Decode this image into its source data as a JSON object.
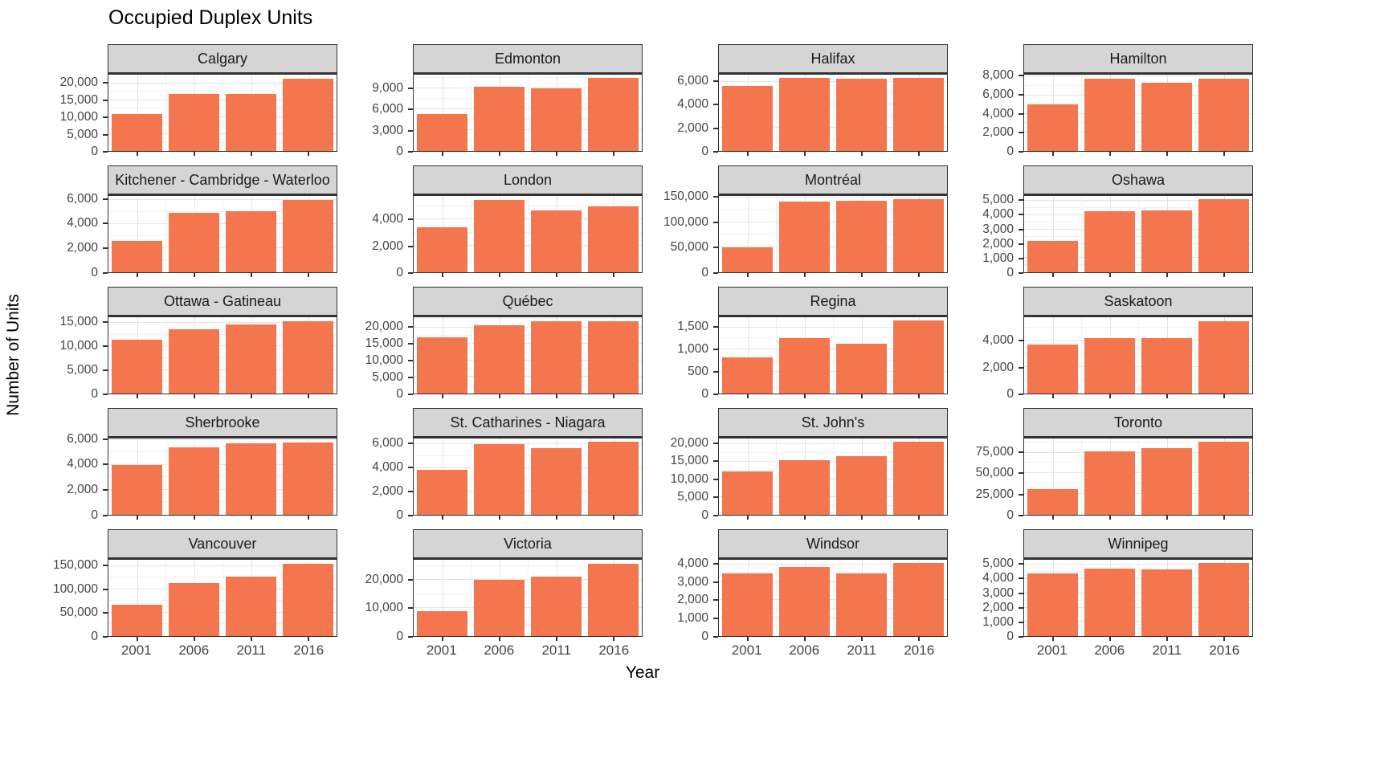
{
  "chart_data": {
    "type": "bar",
    "title": "Occupied Duplex Units",
    "xlabel": "Year",
    "ylabel": "Number of Units",
    "categories": [
      "2001",
      "2006",
      "2011",
      "2016"
    ],
    "bar_color": "#f3764f",
    "grid": true,
    "legend": false,
    "layout": {
      "rows": 5,
      "cols": 4,
      "strip_fill": "#d5d5d5",
      "panel_border": "#333333"
    },
    "facets": [
      {
        "name": "Calgary",
        "yticks": [
          0,
          5000,
          10000,
          15000,
          20000
        ],
        "ymax": 22600,
        "values": [
          11000,
          17000,
          17000,
          21500
        ]
      },
      {
        "name": "Edmonton",
        "yticks": [
          0,
          3000,
          6000,
          9000
        ],
        "ymax": 11000,
        "values": [
          5300,
          9300,
          9000,
          10500
        ]
      },
      {
        "name": "Halifax",
        "yticks": [
          0,
          2000,
          4000,
          6000
        ],
        "ymax": 6600,
        "values": [
          5600,
          6300,
          6250,
          6300
        ]
      },
      {
        "name": "Hamilton",
        "yticks": [
          0,
          2000,
          4000,
          6000,
          8000
        ],
        "ymax": 8200,
        "values": [
          5000,
          7800,
          7300,
          7800
        ]
      },
      {
        "name": "Kitchener - Cambridge - Waterloo",
        "yticks": [
          0,
          2000,
          4000,
          6000
        ],
        "ymax": 6300,
        "values": [
          2600,
          4900,
          5050,
          6000
        ]
      },
      {
        "name": "London",
        "yticks": [
          0,
          2000,
          4000
        ],
        "ymax": 5800,
        "values": [
          3400,
          5500,
          4700,
          5000
        ]
      },
      {
        "name": "Montréal",
        "yticks": [
          0,
          50000,
          100000,
          150000
        ],
        "ymax": 153000,
        "values": [
          50000,
          141000,
          144000,
          146000
        ]
      },
      {
        "name": "Oshawa",
        "yticks": [
          0,
          1000,
          2000,
          3000,
          4000,
          5000
        ],
        "ymax": 5350,
        "values": [
          2200,
          4300,
          4350,
          5100
        ]
      },
      {
        "name": "Ottawa - Gatineau",
        "yticks": [
          0,
          5000,
          10000,
          15000
        ],
        "ymax": 16200,
        "values": [
          11500,
          13600,
          14700,
          15400
        ]
      },
      {
        "name": "Québec",
        "yticks": [
          0,
          5000,
          10000,
          15000,
          20000
        ],
        "ymax": 23100,
        "values": [
          17000,
          20700,
          22000,
          22000
        ]
      },
      {
        "name": "Regina",
        "yticks": [
          0,
          500,
          1000,
          1500
        ],
        "ymax": 1730,
        "values": [
          820,
          1250,
          1130,
          1650
        ]
      },
      {
        "name": "Saskatoon",
        "yticks": [
          0,
          2000,
          4000
        ],
        "ymax": 5800,
        "values": [
          3700,
          4200,
          4200,
          5500
        ]
      },
      {
        "name": "Sherbrooke",
        "yticks": [
          0,
          2000,
          4000,
          6000
        ],
        "ymax": 6100,
        "values": [
          4000,
          5400,
          5700,
          5800
        ]
      },
      {
        "name": "St. Catharines - Niagara",
        "yticks": [
          0,
          2000,
          4000,
          6000
        ],
        "ymax": 6500,
        "values": [
          3800,
          6000,
          5700,
          6200
        ]
      },
      {
        "name": "St. John's",
        "yticks": [
          0,
          5000,
          10000,
          15000,
          20000
        ],
        "ymax": 21500,
        "values": [
          12300,
          15400,
          16600,
          20500
        ]
      },
      {
        "name": "Toronto",
        "yticks": [
          0,
          25000,
          50000,
          75000
        ],
        "ymax": 92000,
        "values": [
          31000,
          77000,
          80000,
          88000
        ]
      },
      {
        "name": "Vancouver",
        "yticks": [
          0,
          50000,
          100000,
          150000
        ],
        "ymax": 163000,
        "values": [
          67000,
          113000,
          127000,
          155000
        ]
      },
      {
        "name": "Victoria",
        "yticks": [
          0,
          10000,
          20000
        ],
        "ymax": 27300,
        "values": [
          9000,
          20000,
          21300,
          26000
        ]
      },
      {
        "name": "Windsor",
        "yticks": [
          0,
          1000,
          2000,
          3000,
          4000
        ],
        "ymax": 4250,
        "values": [
          3500,
          3850,
          3500,
          4050
        ]
      },
      {
        "name": "Winnipeg",
        "yticks": [
          0,
          1000,
          2000,
          3000,
          4000,
          5000
        ],
        "ymax": 5350,
        "values": [
          4400,
          4750,
          4650,
          5100
        ]
      }
    ]
  }
}
